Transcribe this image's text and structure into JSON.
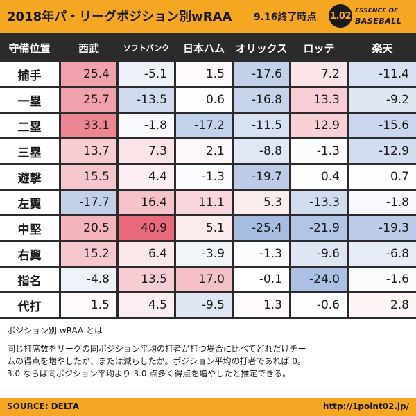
{
  "header": {
    "title": "2018年パ・リーグポジション別wRAA",
    "subtitle": "9.16終了時点",
    "logo": {
      "badge": "1.02",
      "line1": "ESSENCE OF",
      "line2": "BASEBALL"
    }
  },
  "chart_data": {
    "type": "table",
    "corner_label": "守備位置",
    "teams": [
      "西武",
      "ソフトバンク",
      "日本ハム",
      "オリックス",
      "ロッテ",
      "楽天"
    ],
    "rows": [
      {
        "position": "捕手",
        "values": [
          25.4,
          -5.1,
          1.5,
          -17.6,
          7.2,
          -11.4
        ]
      },
      {
        "position": "一塁",
        "values": [
          25.7,
          -13.5,
          0.6,
          -16.8,
          13.3,
          -9.2
        ]
      },
      {
        "position": "二塁",
        "values": [
          33.1,
          -1.8,
          -17.2,
          -11.5,
          12.9,
          -15.6
        ]
      },
      {
        "position": "三塁",
        "values": [
          13.7,
          7.3,
          2.1,
          -8.8,
          -1.3,
          -12.9
        ]
      },
      {
        "position": "遊撃",
        "values": [
          15.5,
          4.4,
          -1.3,
          -19.7,
          0.4,
          0.7
        ]
      },
      {
        "position": "左翼",
        "values": [
          -17.7,
          16.4,
          11.1,
          5.3,
          -13.3,
          -1.8
        ]
      },
      {
        "position": "中堅",
        "values": [
          20.5,
          40.9,
          5.1,
          -25.4,
          -21.9,
          -19.3
        ]
      },
      {
        "position": "右翼",
        "values": [
          15.2,
          6.4,
          -3.9,
          -1.3,
          -9.6,
          -6.8
        ]
      },
      {
        "position": "指名",
        "values": [
          -4.8,
          13.5,
          17.0,
          -0.1,
          -24.0,
          -1.6
        ]
      },
      {
        "position": "代打",
        "values": [
          1.5,
          4.5,
          -9.5,
          1.3,
          -0.6,
          2.8
        ]
      }
    ],
    "color_scale": {
      "positive": "#e8697a",
      "negative": "#7193cf",
      "neutral": "#ffffff"
    }
  },
  "notes": {
    "title": "ポジション別 wRAA とは",
    "lines": [
      "同じ打席数をリーグの同ポジション平均の打者が打つ場合に比べてどれだけチー",
      "ムの得点を増やしたか、または減らしたか。ポジション平均の打者であれば 0。",
      "3.0 ならば同ポジション平均より 3.0 点多く得点を増やしたと推定できる。"
    ]
  },
  "footer": {
    "source": "SOURCE: DELTA",
    "url": "http://1point02.jp/"
  }
}
